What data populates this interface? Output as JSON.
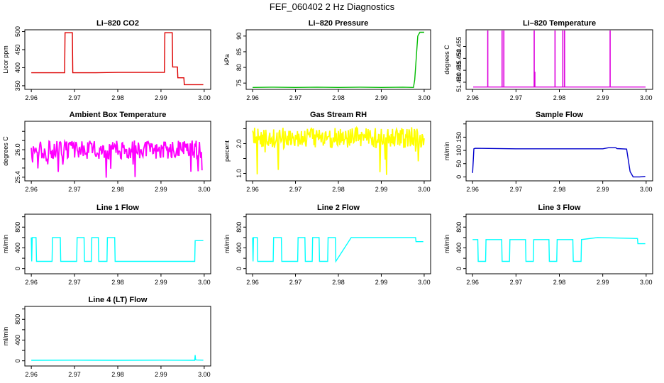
{
  "figure": {
    "title": "FEF_060402  2 Hz Diagnostics"
  },
  "chart_data": [
    {
      "type": "line",
      "title": "Li–820 CO2",
      "ylabel": "Licor ppm",
      "color": "#dd0000",
      "xlim": [
        2.9585,
        3.0015
      ],
      "ylim": [
        340,
        505
      ],
      "xticks": [
        2.96,
        2.97,
        2.98,
        2.99,
        3.0
      ],
      "xtick_labels": [
        "2.96",
        "2.97",
        "2.98",
        "2.99",
        "3.00"
      ],
      "yticks": [
        350,
        400,
        450,
        500
      ],
      "ytick_labels": [
        "350",
        "400",
        "450",
        "500"
      ],
      "style": "step",
      "x": [
        2.96,
        2.9677,
        2.9678,
        2.9695,
        2.9696,
        2.975,
        2.98,
        2.985,
        2.9908,
        2.9909,
        2.9926,
        2.9927,
        2.9938,
        2.9939,
        2.9953,
        2.9954,
        2.9998
      ],
      "y": [
        386,
        386,
        497,
        497,
        386,
        386,
        387,
        387,
        387,
        497,
        497,
        402,
        402,
        372,
        372,
        353,
        353
      ]
    },
    {
      "type": "line",
      "title": "Li–820 Pressure",
      "ylabel": "kPa",
      "color": "#00bb00",
      "xlim": [
        2.9585,
        3.0015
      ],
      "ylim": [
        73,
        92
      ],
      "xticks": [
        2.96,
        2.97,
        2.98,
        2.99,
        3.0
      ],
      "xtick_labels": [
        "2.96",
        "2.97",
        "2.98",
        "2.99",
        "3.00"
      ],
      "yticks": [
        75,
        80,
        85,
        90
      ],
      "ytick_labels": [
        "75",
        "80",
        "85",
        "90"
      ],
      "style": "line",
      "x": [
        2.96,
        2.965,
        2.97,
        2.975,
        2.98,
        2.985,
        2.99,
        2.995,
        2.9975,
        2.9978,
        2.9985,
        2.999,
        3.0
      ],
      "y": [
        73.6,
        73.7,
        73.6,
        73.7,
        73.6,
        73.7,
        73.6,
        73.7,
        73.6,
        76.0,
        90.0,
        91.2,
        91.2
      ]
    },
    {
      "type": "line",
      "title": "Li–820 Temperature",
      "ylabel": "degrees C",
      "color": "#dd00dd",
      "xlim": [
        2.9585,
        3.0015
      ],
      "ylim": [
        51.437,
        51.462
      ],
      "xticks": [
        2.96,
        2.97,
        2.98,
        2.99,
        3.0
      ],
      "xtick_labels": [
        "2.96",
        "2.97",
        "2.98",
        "2.99",
        "3.00"
      ],
      "yticks": [
        51.44,
        51.445,
        51.45,
        51.455
      ],
      "ytick_labels": [
        "51.440",
        "51.445",
        "51.450",
        "51.455"
      ],
      "style": "spikes",
      "baseline": 51.438,
      "x": [
        2.9635,
        2.9668,
        2.9672,
        2.9742,
        2.979,
        2.9808,
        2.9812,
        2.9917
      ],
      "y": [
        51.4618,
        51.4618,
        51.4618,
        51.4618,
        51.4618,
        51.4618,
        51.4618,
        51.4618
      ],
      "minor_spikes": [
        {
          "x": 2.9742,
          "y": 51.4444
        }
      ]
    },
    {
      "type": "line",
      "title": "Ambient Box Temperature",
      "ylabel": "degrees C",
      "color": "#ff00ff",
      "xlim": [
        2.9585,
        3.0015
      ],
      "ylim": [
        25.32,
        26.62
      ],
      "xticks": [
        2.96,
        2.97,
        2.98,
        2.99,
        3.0
      ],
      "xtick_labels": [
        "2.96",
        "2.97",
        "2.98",
        "2.99",
        "3.00"
      ],
      "yticks": [
        25.4,
        25.6,
        25.8,
        26.0,
        26.2,
        26.4
      ],
      "ytick_labels": [
        "25.4",
        "",
        "",
        "26.0",
        "",
        ""
      ],
      "style": "noise",
      "center": 26.0,
      "spread": 0.2,
      "range": [
        25.35,
        26.55
      ],
      "x_end": 2.9995
    },
    {
      "type": "line",
      "title": "Gas Stream RH",
      "ylabel": "percent",
      "color": "#ffff00",
      "xlim": [
        2.9585,
        3.0015
      ],
      "ylim": [
        0.75,
        2.75
      ],
      "xticks": [
        2.96,
        2.97,
        2.98,
        2.99,
        3.0
      ],
      "xtick_labels": [
        "2.96",
        "2.97",
        "2.98",
        "2.99",
        "3.00"
      ],
      "yticks": [
        1.0,
        1.5,
        2.0,
        2.5
      ],
      "ytick_labels": [
        "1.0",
        "",
        "2.0",
        ""
      ],
      "style": "noise",
      "center": 2.2,
      "spread": 0.35,
      "range": [
        0.9,
        2.6
      ],
      "x_end": 3.0
    },
    {
      "type": "line",
      "title": "Sample Flow",
      "ylabel": "ml/min",
      "color": "#0000cc",
      "xlim": [
        2.9585,
        3.0015
      ],
      "ylim": [
        -15,
        210
      ],
      "xticks": [
        2.96,
        2.97,
        2.98,
        2.99,
        3.0
      ],
      "xtick_labels": [
        "2.96",
        "2.97",
        "2.98",
        "2.99",
        "3.00"
      ],
      "yticks": [
        0,
        50,
        100,
        150,
        200
      ],
      "ytick_labels": [
        "0",
        "50",
        "100",
        "150",
        ""
      ],
      "style": "line",
      "x": [
        2.96,
        2.9603,
        2.9606,
        2.97,
        2.98,
        2.99,
        2.9913,
        2.993,
        2.9933,
        2.9955,
        2.9963,
        2.997,
        2.9985,
        2.9998
      ],
      "y": [
        15,
        106,
        108,
        106,
        106,
        106,
        110,
        110,
        107,
        105,
        20,
        0,
        0,
        2
      ]
    },
    {
      "type": "line",
      "title": "Line 1 Flow",
      "ylabel": "ml/min",
      "color": "#00ffff",
      "xlim": [
        2.9585,
        3.0015
      ],
      "ylim": [
        -100,
        1050
      ],
      "xticks": [
        2.96,
        2.97,
        2.98,
        2.99,
        3.0
      ],
      "xtick_labels": [
        "2.96",
        "2.97",
        "2.98",
        "2.99",
        "3.00"
      ],
      "yticks": [
        0,
        200,
        400,
        600,
        800,
        1000
      ],
      "ytick_labels": [
        "0",
        "",
        "400",
        "",
        "800",
        ""
      ],
      "style": "step",
      "x": [
        2.96,
        2.9601,
        2.9602,
        2.9611,
        2.9612,
        2.9648,
        2.9649,
        2.9667,
        2.9668,
        2.9705,
        2.9706,
        2.9722,
        2.9723,
        2.9739,
        2.974,
        2.9755,
        2.9756,
        2.9775,
        2.9776,
        2.9793,
        2.9794,
        2.9829,
        2.983,
        2.9978,
        2.9979,
        2.9998
      ],
      "y": [
        600,
        140,
        600,
        600,
        140,
        140,
        600,
        600,
        140,
        140,
        600,
        600,
        140,
        140,
        600,
        600,
        140,
        140,
        600,
        600,
        140,
        140,
        140,
        140,
        540,
        540
      ]
    },
    {
      "type": "line",
      "title": "Line 2 Flow",
      "ylabel": "ml/min",
      "color": "#00ffff",
      "xlim": [
        2.9585,
        3.0015
      ],
      "ylim": [
        -100,
        1050
      ],
      "xticks": [
        2.96,
        2.97,
        2.98,
        2.99,
        3.0
      ],
      "xtick_labels": [
        "2.96",
        "2.97",
        "2.98",
        "2.99",
        "3.00"
      ],
      "yticks": [
        0,
        200,
        400,
        600,
        800,
        1000
      ],
      "ytick_labels": [
        "0",
        "",
        "400",
        "",
        "800",
        ""
      ],
      "style": "step",
      "x": [
        2.96,
        2.9601,
        2.9602,
        2.9611,
        2.9612,
        2.9648,
        2.9649,
        2.9667,
        2.9668,
        2.9705,
        2.9706,
        2.9722,
        2.9723,
        2.9739,
        2.974,
        2.9755,
        2.9756,
        2.9775,
        2.9776,
        2.9793,
        2.9794,
        2.983,
        2.998,
        2.9981,
        2.9998
      ],
      "y": [
        600,
        140,
        600,
        600,
        140,
        140,
        600,
        600,
        140,
        140,
        600,
        600,
        140,
        140,
        600,
        600,
        140,
        140,
        600,
        600,
        140,
        600,
        600,
        520,
        520
      ]
    },
    {
      "type": "line",
      "title": "Line 3 Flow",
      "ylabel": "ml/min",
      "color": "#00ffff",
      "xlim": [
        2.9585,
        3.0015
      ],
      "ylim": [
        -100,
        1050
      ],
      "xticks": [
        2.96,
        2.97,
        2.98,
        2.99,
        3.0
      ],
      "xtick_labels": [
        "2.96",
        "2.97",
        "2.98",
        "2.99",
        "3.00"
      ],
      "yticks": [
        0,
        200,
        400,
        600,
        800,
        1000
      ],
      "ytick_labels": [
        "0",
        "",
        "400",
        "",
        "800",
        ""
      ],
      "style": "step",
      "x": [
        2.96,
        2.9612,
        2.9613,
        2.963,
        2.9631,
        2.9667,
        2.9668,
        2.9685,
        2.9686,
        2.9722,
        2.9723,
        2.974,
        2.9741,
        2.9776,
        2.9777,
        2.9794,
        2.9795,
        2.9831,
        2.9832,
        2.985,
        2.9851,
        2.9888,
        2.998,
        2.9981,
        2.9998
      ],
      "y": [
        560,
        560,
        140,
        140,
        560,
        560,
        140,
        140,
        560,
        560,
        140,
        140,
        560,
        560,
        140,
        140,
        560,
        560,
        140,
        140,
        560,
        600,
        580,
        480,
        480
      ]
    },
    {
      "type": "line",
      "title": "Line 4 (LT) Flow",
      "ylabel": "ml/min",
      "color": "#00ffff",
      "xlim": [
        2.9585,
        3.0015
      ],
      "ylim": [
        -100,
        1050
      ],
      "xticks": [
        2.96,
        2.97,
        2.98,
        2.99,
        3.0
      ],
      "xtick_labels": [
        "2.96",
        "2.97",
        "2.98",
        "2.99",
        "3.00"
      ],
      "yticks": [
        0,
        200,
        400,
        600,
        800,
        1000
      ],
      "ytick_labels": [
        "0",
        "",
        "400",
        "",
        "800",
        ""
      ],
      "style": "line",
      "x": [
        2.96,
        2.97,
        2.98,
        2.99,
        2.9978,
        2.9979,
        2.998,
        2.9982,
        2.9998
      ],
      "y": [
        10,
        12,
        10,
        12,
        10,
        110,
        20,
        15,
        12
      ]
    }
  ]
}
